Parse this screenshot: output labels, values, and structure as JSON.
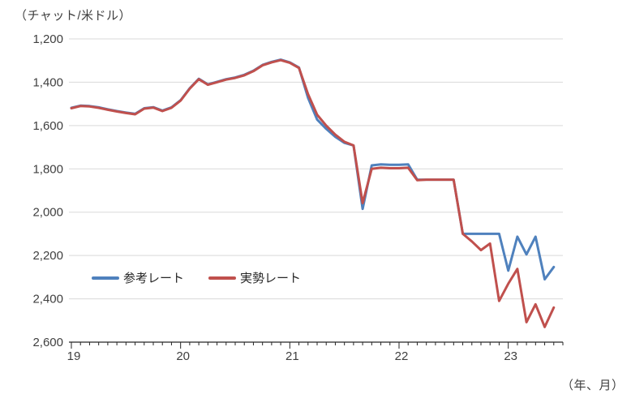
{
  "y_axis_unit": "（チャット/米ドル）",
  "x_axis_unit": "（年、月）",
  "legend_items": [
    {
      "id": "reference-rate",
      "label": "参考レート",
      "color": "#4F81BD"
    },
    {
      "id": "market-rate",
      "label": "実勢レート",
      "color": "#C0504D"
    }
  ],
  "chart_data": {
    "type": "line",
    "title": "",
    "ylabel": "（チャット/米ドル）",
    "xlabel": "（年、月）",
    "y_inverted": true,
    "ylim": [
      1200,
      2600
    ],
    "ytick_step": 200,
    "ytick_labels": [
      "1,200",
      "1,400",
      "1,600",
      "1,800",
      "2,000",
      "2,200",
      "2,400",
      "2,600"
    ],
    "grid": true,
    "x_start": "2019-01",
    "x_end_data": "2023-06",
    "x_end_axis": "2023-07",
    "months_on_axis": 55,
    "year_tick_months": [
      0,
      12,
      24,
      36,
      48
    ],
    "year_tick_labels": [
      "19",
      "20",
      "21",
      "22",
      "23"
    ],
    "legend_position": "inside-lower-left",
    "series": [
      {
        "name": "参考レート",
        "id": "reference-rate",
        "color": "#4F81BD",
        "values": [
          1518,
          1508,
          1510,
          1516,
          1525,
          1533,
          1540,
          1546,
          1520,
          1515,
          1531,
          1516,
          1483,
          1428,
          1384,
          1410,
          1398,
          1386,
          1378,
          1366,
          1347,
          1320,
          1306,
          1296,
          1308,
          1332,
          1472,
          1572,
          1615,
          1652,
          1680,
          1692,
          1985,
          1784,
          1779,
          1781,
          1781,
          1779,
          1850,
          1850,
          1850,
          1850,
          1850,
          2100,
          2100,
          2100,
          2100,
          2100,
          2270,
          2113,
          2195,
          2113,
          2310,
          2253
        ]
      },
      {
        "name": "実勢レート",
        "id": "market-rate",
        "color": "#C0504D",
        "values": [
          1520,
          1510,
          1512,
          1518,
          1527,
          1535,
          1542,
          1548,
          1522,
          1517,
          1533,
          1518,
          1485,
          1430,
          1386,
          1412,
          1400,
          1388,
          1380,
          1368,
          1349,
          1322,
          1308,
          1298,
          1310,
          1334,
          1455,
          1550,
          1600,
          1642,
          1675,
          1692,
          1958,
          1800,
          1795,
          1797,
          1797,
          1795,
          1852,
          1850,
          1850,
          1850,
          1850,
          2100,
          2135,
          2175,
          2145,
          2410,
          2330,
          2262,
          2508,
          2425,
          2530,
          2440
        ]
      }
    ],
    "colors": {
      "gridline": "#D9D9D9",
      "axis": "#262626",
      "tick_text": "#3f3f3f"
    }
  }
}
